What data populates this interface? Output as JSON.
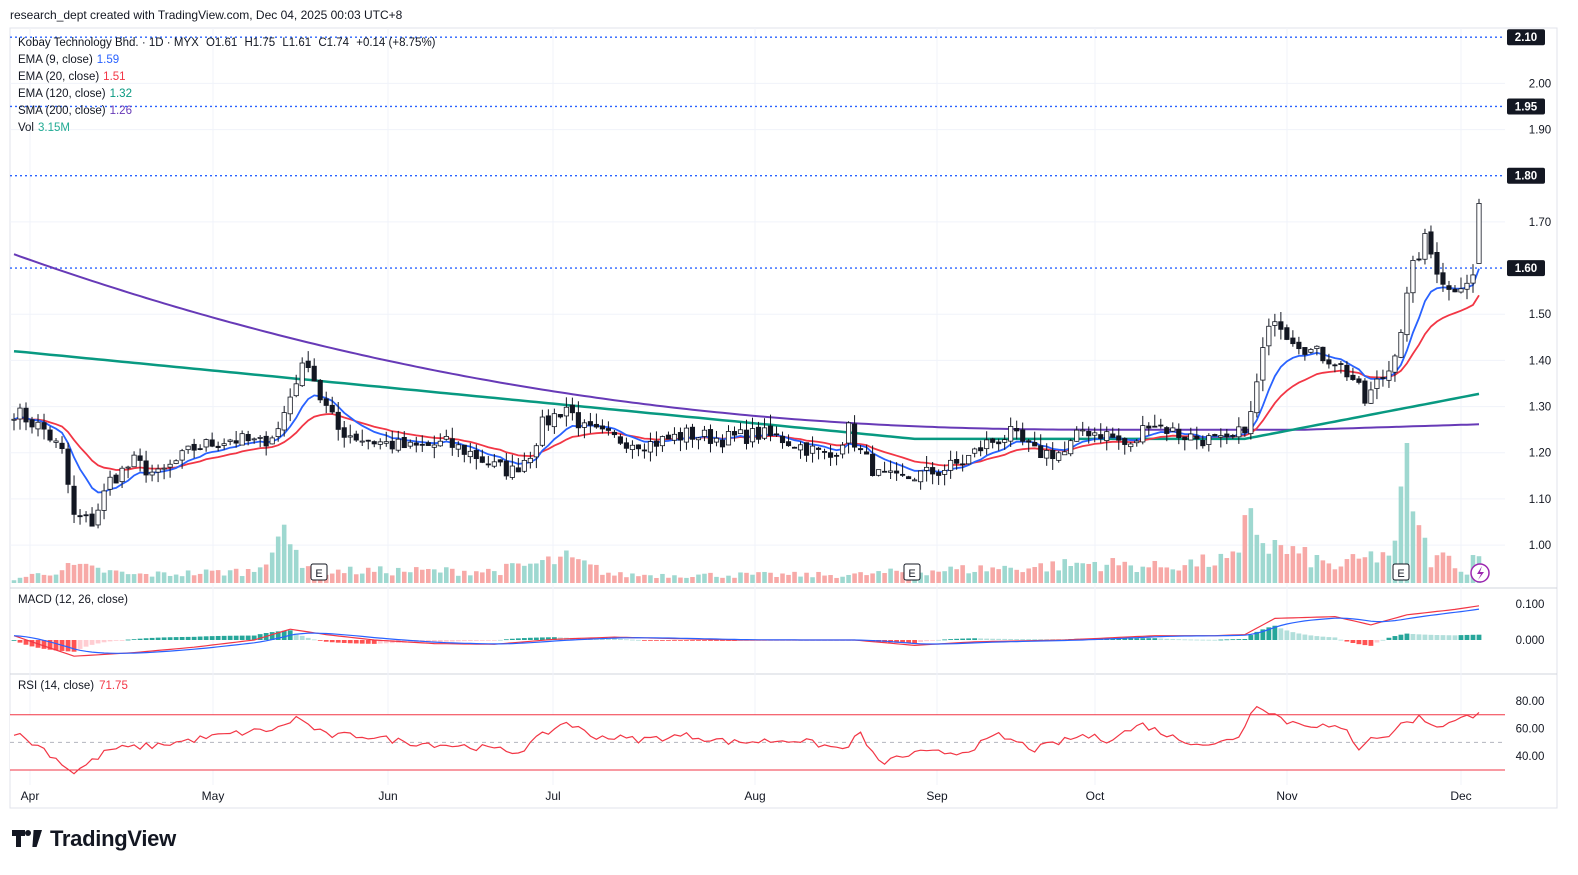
{
  "header": {
    "created_by": "research_dept created with TradingView.com, Dec 04, 2025 00:03 UTC+8"
  },
  "symbol": {
    "name": "Kobay Technology Bhd.",
    "interval": "1D",
    "exchange": "MYX",
    "open": "O1.61",
    "high": "H1.75",
    "low": "L1.61",
    "close": "C1.74",
    "change": "+0.14 (+8.75%)"
  },
  "indicators": [
    {
      "label": "EMA (9, close)",
      "value": "1.59",
      "color": "#2962ff"
    },
    {
      "label": "EMA (20, close)",
      "value": "1.51",
      "color": "#f23645"
    },
    {
      "label": "EMA (120, close)",
      "value": "1.32",
      "color": "#089981"
    },
    {
      "label": "SMA (200, close)",
      "value": "1.26",
      "color": "#673ab7"
    },
    {
      "label": "Vol",
      "value": "3.15M",
      "color": "#22ab94"
    }
  ],
  "macd": {
    "label": "MACD (12, 26, close)",
    "tick_top": "0.100",
    "tick_zero": "0.000"
  },
  "rsi": {
    "label": "RSI (14, close)",
    "value": "71.75",
    "color": "#f23645",
    "ticks": [
      "80.00",
      "60.00",
      "40.00"
    ]
  },
  "brand": {
    "name": "TradingView"
  },
  "colors": {
    "up": "#ffffff",
    "down": "#131722",
    "vol_up": "#9ed8d0",
    "vol_down": "#f7a9a7",
    "level_line": "#2962ff",
    "ema9": "#2962ff",
    "ema20": "#f23645",
    "ema120": "#089981",
    "sma200": "#673ab7"
  },
  "chart_data": {
    "type": "candlestick",
    "price_axis": {
      "ticks": [
        "2.00",
        "1.90",
        "1.70",
        "1.50",
        "1.40",
        "1.30",
        "1.20",
        "1.10",
        "1.00"
      ],
      "ylim": [
        0.92,
        2.12
      ]
    },
    "x_axis": {
      "labels": [
        "Apr",
        "May",
        "Jun",
        "Jul",
        "Aug",
        "Sep",
        "Oct",
        "Nov",
        "Dec"
      ]
    },
    "level_lines": [
      {
        "value": 2.1,
        "label": "2.10"
      },
      {
        "value": 1.95,
        "label": "1.95"
      },
      {
        "value": 1.8,
        "label": "1.80"
      },
      {
        "value": 1.6,
        "label": "1.60"
      }
    ],
    "earnings_markers": [
      "E",
      "E",
      "E"
    ],
    "waypoints": {
      "close": [
        [
          0,
          1.29
        ],
        [
          5,
          1.25
        ],
        [
          8,
          1.2
        ],
        [
          10,
          1.06
        ],
        [
          13,
          1.05
        ],
        [
          16,
          1.14
        ],
        [
          20,
          1.18
        ],
        [
          24,
          1.15
        ],
        [
          30,
          1.21
        ],
        [
          36,
          1.23
        ],
        [
          41,
          1.22
        ],
        [
          44,
          1.25
        ],
        [
          47,
          1.36
        ],
        [
          49,
          1.4
        ],
        [
          51,
          1.32
        ],
        [
          54,
          1.25
        ],
        [
          58,
          1.23
        ],
        [
          62,
          1.22
        ],
        [
          66,
          1.21
        ],
        [
          72,
          1.22
        ],
        [
          76,
          1.2
        ],
        [
          80,
          1.17
        ],
        [
          83,
          1.16
        ],
        [
          86,
          1.2
        ],
        [
          88,
          1.26
        ],
        [
          92,
          1.3
        ],
        [
          95,
          1.25
        ],
        [
          100,
          1.23
        ],
        [
          106,
          1.22
        ],
        [
          112,
          1.24
        ],
        [
          118,
          1.23
        ],
        [
          124,
          1.24
        ],
        [
          128,
          1.23
        ],
        [
          132,
          1.21
        ],
        [
          136,
          1.19
        ],
        [
          139,
          1.25
        ],
        [
          141,
          1.2
        ],
        [
          144,
          1.15
        ],
        [
          147,
          1.14
        ],
        [
          150,
          1.15
        ],
        [
          154,
          1.16
        ],
        [
          158,
          1.18
        ],
        [
          162,
          1.22
        ],
        [
          166,
          1.24
        ],
        [
          170,
          1.2
        ],
        [
          175,
          1.2
        ],
        [
          178,
          1.25
        ],
        [
          182,
          1.24
        ],
        [
          186,
          1.21
        ],
        [
          189,
          1.27
        ],
        [
          194,
          1.24
        ],
        [
          198,
          1.23
        ],
        [
          202,
          1.22
        ],
        [
          204,
          1.24
        ],
        [
          206,
          1.28
        ],
        [
          208,
          1.42
        ],
        [
          210,
          1.5
        ],
        [
          212,
          1.46
        ],
        [
          216,
          1.42
        ],
        [
          220,
          1.4
        ],
        [
          223,
          1.36
        ],
        [
          225,
          1.31
        ],
        [
          227,
          1.35
        ],
        [
          229,
          1.38
        ],
        [
          231,
          1.47
        ],
        [
          233,
          1.6
        ],
        [
          235,
          1.66
        ],
        [
          237,
          1.6
        ],
        [
          239,
          1.55
        ],
        [
          241,
          1.57
        ],
        [
          243,
          1.58
        ],
        [
          244,
          1.74
        ]
      ],
      "volume": [
        [
          0,
          0.05
        ],
        [
          10,
          0.2
        ],
        [
          20,
          0.1
        ],
        [
          40,
          0.15
        ],
        [
          44,
          0.6
        ],
        [
          46,
          0.45
        ],
        [
          50,
          0.15
        ],
        [
          80,
          0.15
        ],
        [
          92,
          0.3
        ],
        [
          100,
          0.1
        ],
        [
          140,
          0.1
        ],
        [
          150,
          0.15
        ],
        [
          170,
          0.2
        ],
        [
          180,
          0.25
        ],
        [
          190,
          0.2
        ],
        [
          204,
          0.3
        ],
        [
          206,
          1.0
        ],
        [
          208,
          0.5
        ],
        [
          212,
          0.4
        ],
        [
          220,
          0.2
        ],
        [
          230,
          0.4
        ],
        [
          232,
          1.7
        ],
        [
          234,
          0.6
        ],
        [
          236,
          0.3
        ],
        [
          240,
          0.3
        ],
        [
          242,
          0.1
        ],
        [
          244,
          0.55
        ]
      ],
      "macd": [
        [
          0,
          0.012
        ],
        [
          10,
          -0.045
        ],
        [
          20,
          -0.035
        ],
        [
          30,
          -0.02
        ],
        [
          40,
          0.0
        ],
        [
          46,
          0.03
        ],
        [
          52,
          0.015
        ],
        [
          60,
          0.0
        ],
        [
          70,
          -0.01
        ],
        [
          80,
          -0.012
        ],
        [
          90,
          0.002
        ],
        [
          100,
          0.008
        ],
        [
          120,
          0.0
        ],
        [
          140,
          0.0
        ],
        [
          150,
          -0.015
        ],
        [
          160,
          -0.005
        ],
        [
          175,
          0.0
        ],
        [
          190,
          0.012
        ],
        [
          200,
          0.012
        ],
        [
          205,
          0.015
        ],
        [
          210,
          0.06
        ],
        [
          220,
          0.065
        ],
        [
          226,
          0.042
        ],
        [
          232,
          0.07
        ],
        [
          240,
          0.085
        ],
        [
          244,
          0.095
        ]
      ],
      "rsi": [
        [
          0,
          57
        ],
        [
          5,
          45
        ],
        [
          10,
          28
        ],
        [
          16,
          45
        ],
        [
          24,
          48
        ],
        [
          36,
          56
        ],
        [
          44,
          60
        ],
        [
          47,
          68
        ],
        [
          52,
          55
        ],
        [
          58,
          55
        ],
        [
          66,
          50
        ],
        [
          76,
          47
        ],
        [
          84,
          43
        ],
        [
          88,
          55
        ],
        [
          92,
          65
        ],
        [
          96,
          55
        ],
        [
          104,
          52
        ],
        [
          112,
          55
        ],
        [
          120,
          50
        ],
        [
          130,
          52
        ],
        [
          138,
          45
        ],
        [
          141,
          56
        ],
        [
          144,
          35
        ],
        [
          150,
          42
        ],
        [
          158,
          43
        ],
        [
          164,
          55
        ],
        [
          170,
          45
        ],
        [
          178,
          55
        ],
        [
          182,
          52
        ],
        [
          188,
          63
        ],
        [
          194,
          52
        ],
        [
          200,
          48
        ],
        [
          204,
          55
        ],
        [
          207,
          78
        ],
        [
          209,
          73
        ],
        [
          212,
          65
        ],
        [
          218,
          62
        ],
        [
          222,
          58
        ],
        [
          224,
          46
        ],
        [
          226,
          55
        ],
        [
          228,
          52
        ],
        [
          231,
          63
        ],
        [
          234,
          68
        ],
        [
          237,
          62
        ],
        [
          240,
          65
        ],
        [
          244,
          71.75
        ]
      ]
    }
  }
}
